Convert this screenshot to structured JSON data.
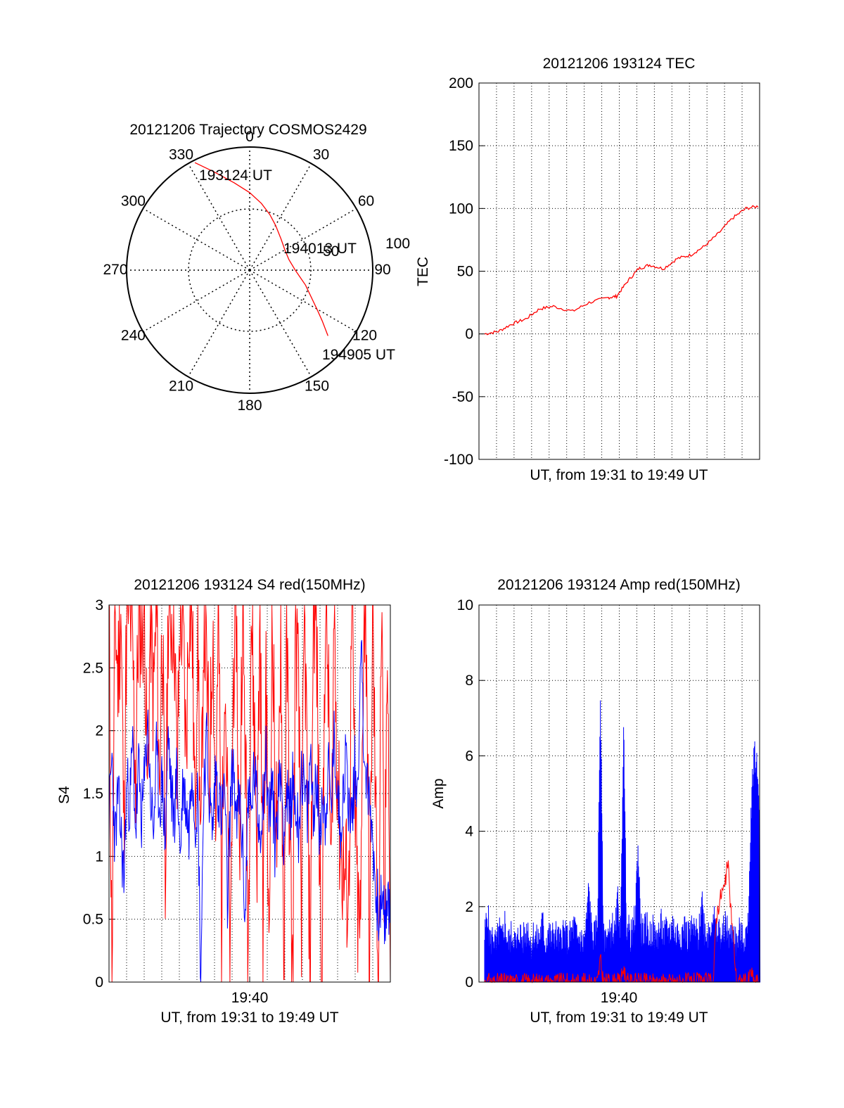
{
  "chart_data": [
    {
      "id": "trajectory",
      "type": "polar",
      "title": "20121206 Trajectory COSMOS2429",
      "angle_labels": [
        "0",
        "30",
        "60",
        "90",
        "120",
        "150",
        "180",
        "210",
        "240",
        "270",
        "300",
        "330"
      ],
      "radial_labels": [
        "50",
        "100"
      ],
      "rmax": 100,
      "track": {
        "points": [
          [
            333,
            98
          ],
          [
            340,
            85
          ],
          [
            350,
            72
          ],
          [
            0,
            63
          ],
          [
            10,
            55
          ],
          [
            20,
            48
          ],
          [
            30,
            42
          ],
          [
            45,
            36
          ],
          [
            60,
            33
          ],
          [
            75,
            33
          ],
          [
            90,
            37
          ],
          [
            105,
            47
          ],
          [
            120,
            63
          ],
          [
            125,
            72
          ],
          [
            130,
            83
          ]
        ],
        "color": "#ff0000"
      },
      "annotations": [
        {
          "text": "193124 UT"
        },
        {
          "text": "194013 UT"
        },
        {
          "text": "194905 UT"
        }
      ]
    },
    {
      "id": "tec",
      "type": "line",
      "title": "20121206 193124 TEC",
      "xlabel": "UT, from 19:31 to 19:49 UT",
      "ylabel": "TEC",
      "xlim": [
        0,
        1
      ],
      "ylim": [
        -100,
        200
      ],
      "yticks": [
        -100,
        -50,
        0,
        50,
        100,
        150,
        200
      ],
      "xticks": [],
      "series": [
        {
          "color": "#ff0000",
          "x": [
            0,
            0.05,
            0.1,
            0.15,
            0.2,
            0.25,
            0.32,
            0.38,
            0.45,
            0.48,
            0.52,
            0.56,
            0.6,
            0.65,
            0.7,
            0.75,
            0.8,
            0.85,
            0.9,
            0.95,
            1.0
          ],
          "y": [
            0,
            2,
            8,
            12,
            20,
            22,
            18,
            25,
            29,
            30,
            42,
            52,
            55,
            52,
            60,
            63,
            70,
            80,
            92,
            100,
            102
          ]
        }
      ]
    },
    {
      "id": "s4",
      "type": "line",
      "title": "20121206 193124 S4 red(150MHz)",
      "xlabel": "UT, from 19:31 to 19:49 UT",
      "ylabel": "S4",
      "xlim": [
        0,
        1
      ],
      "ylim": [
        0,
        3
      ],
      "yticks": [
        0,
        0.5,
        1,
        1.5,
        2,
        2.5,
        3
      ],
      "ytick_labels": [
        "0",
        "0.5",
        "1",
        "1.5",
        "2",
        "2.5",
        "3"
      ],
      "xtick_labels": [
        {
          "value": 0.5,
          "label": "19:40"
        }
      ],
      "series": [
        {
          "color": "#ff0000",
          "y": [
            3,
            0,
            3,
            2.4,
            3,
            1.2,
            3,
            3,
            2.6,
            1.6,
            3,
            2.8,
            3,
            1.4,
            3,
            2.2,
            3,
            1.5,
            3,
            0.6,
            3,
            2.9,
            3,
            1.5,
            3,
            2.8,
            1.8,
            3,
            3,
            1.3,
            3,
            0.8,
            3,
            2.4,
            1.6,
            3,
            1.2,
            3,
            0.5,
            2.7,
            1.4,
            0,
            2.5,
            3,
            0.8,
            3,
            1.9,
            0.3,
            3,
            2.1,
            1.1,
            3,
            0.4,
            2.6,
            0,
            3,
            1.7,
            0.9,
            3,
            0,
            2.8,
            1.3,
            0,
            3,
            2.2,
            0.6,
            3,
            1.5,
            0,
            3,
            2.9,
            1.1,
            0.2,
            3,
            2.4,
            0.7,
            3,
            1.8,
            1.1,
            0.9,
            0.8,
            0.7,
            3,
            1.5,
            0.5,
            0.4,
            3,
            2.7,
            0,
            3,
            1.4,
            0,
            3,
            0.2,
            3,
            0
          ]
        },
        {
          "color": "#0000ff",
          "y": [
            1.3,
            1.8,
            1.1,
            1.5,
            1.2,
            0.8,
            1.6,
            1.4,
            1.9,
            1.2,
            1.7,
            1.3,
            1.6,
            2.1,
            1.5,
            1.2,
            1.8,
            1.4,
            1.6,
            1.1,
            2.0,
            1.5,
            1.3,
            1.7,
            1.0,
            1.6,
            1.4,
            1.2,
            1.8,
            1.3,
            1.5,
            0.0,
            1.6,
            1.9,
            1.4,
            1.2,
            1.7,
            1.5,
            1.3,
            1.6,
            0.6,
            1.4,
            1.8,
            1.2,
            1.5,
            1.1,
            0.5,
            1.6,
            1.3,
            1.7,
            1.4,
            1.2,
            1.5,
            1.8,
            1.3,
            1.6,
            1.1,
            1.4,
            1.7,
            1.2,
            1.5,
            1.3,
            1.6,
            1.4,
            1.2,
            1.7,
            1.5,
            1.3,
            1.8,
            1.4,
            1.6,
            1.2,
            1.5,
            1.3,
            1.7,
            1.4,
            1.9,
            1.6,
            1.2,
            1.5,
            1.8,
            1.4,
            1.3,
            1.7,
            1.5,
            2.8,
            1.9,
            1.6,
            1.4,
            1.2,
            0.7,
            0.6,
            0.6,
            0.5,
            0.6,
            0.6
          ]
        }
      ]
    },
    {
      "id": "amp",
      "type": "line",
      "title": "20121206 193124 Amp red(150MHz)",
      "xlabel": "UT, from 19:31 to 19:49 UT",
      "ylabel": "Amp",
      "xlim": [
        0,
        1
      ],
      "ylim": [
        0,
        10
      ],
      "yticks": [
        0,
        2,
        4,
        6,
        8,
        10
      ],
      "xtick_labels": [
        {
          "value": 0.5,
          "label": "19:40"
        }
      ],
      "series": [
        {
          "color": "#0000ff",
          "y": [
            1.2,
            1.9,
            1.0,
            1.3,
            0.9,
            1.4,
            1.1,
            1.6,
            1.0,
            1.2,
            1.3,
            0.9,
            1.4,
            1.1,
            1.2,
            1.5,
            1.0,
            1.3,
            1.1,
            1.2,
            1.6,
            1.0,
            1.4,
            1.1,
            1.3,
            1.2,
            1.0,
            1.4,
            1.2,
            1.1,
            1.3,
            1.5,
            1.1,
            1.2,
            1.0,
            1.4,
            2.5,
            1.3,
            1.2,
            1.6,
            7.7,
            1.1,
            1.3,
            1.2,
            1.5,
            1.2,
            2.2,
            1.3,
            7.0,
            1.6,
            1.3,
            1.2,
            1.8,
            3.6,
            1.4,
            1.3,
            1.5,
            1.2,
            1.4,
            1.1,
            1.3,
            1.5,
            1.2,
            1.4,
            1.3,
            1.6,
            1.2,
            1.4,
            1.3,
            1.5,
            1.2,
            1.3,
            1.4,
            1.3,
            1.2,
            2.3,
            1.4,
            1.3,
            1.5,
            1.9,
            1.2,
            1.4,
            1.1,
            1.6,
            1.3,
            1.2,
            1.4,
            1.0,
            1.3,
            1.1,
            1.2,
            1.4,
            4.5,
            6.2,
            5.7,
            4.8
          ]
        },
        {
          "color": "#ff0000",
          "y": [
            0,
            0,
            0,
            0,
            0,
            0,
            0,
            0,
            0,
            0,
            0,
            0,
            0,
            0,
            0,
            0,
            0,
            0,
            0,
            0,
            0,
            0,
            0,
            0,
            0,
            0,
            0,
            0,
            0,
            0,
            0,
            0,
            0,
            0,
            0,
            0,
            0,
            0,
            0,
            0,
            0.6,
            0,
            0,
            0,
            0,
            0,
            0,
            0,
            0.4,
            0,
            0,
            0,
            0,
            0,
            0,
            0,
            0,
            0,
            0,
            0,
            0,
            0,
            0,
            0,
            0,
            0,
            0,
            0,
            0,
            0,
            0,
            0,
            0,
            0,
            0,
            0,
            0,
            0,
            0,
            0,
            1.7,
            2.1,
            2.4,
            2.5,
            3.2,
            2.0,
            1.1,
            0,
            0,
            0,
            0,
            0,
            0.3,
            0,
            0,
            0
          ]
        }
      ]
    }
  ]
}
